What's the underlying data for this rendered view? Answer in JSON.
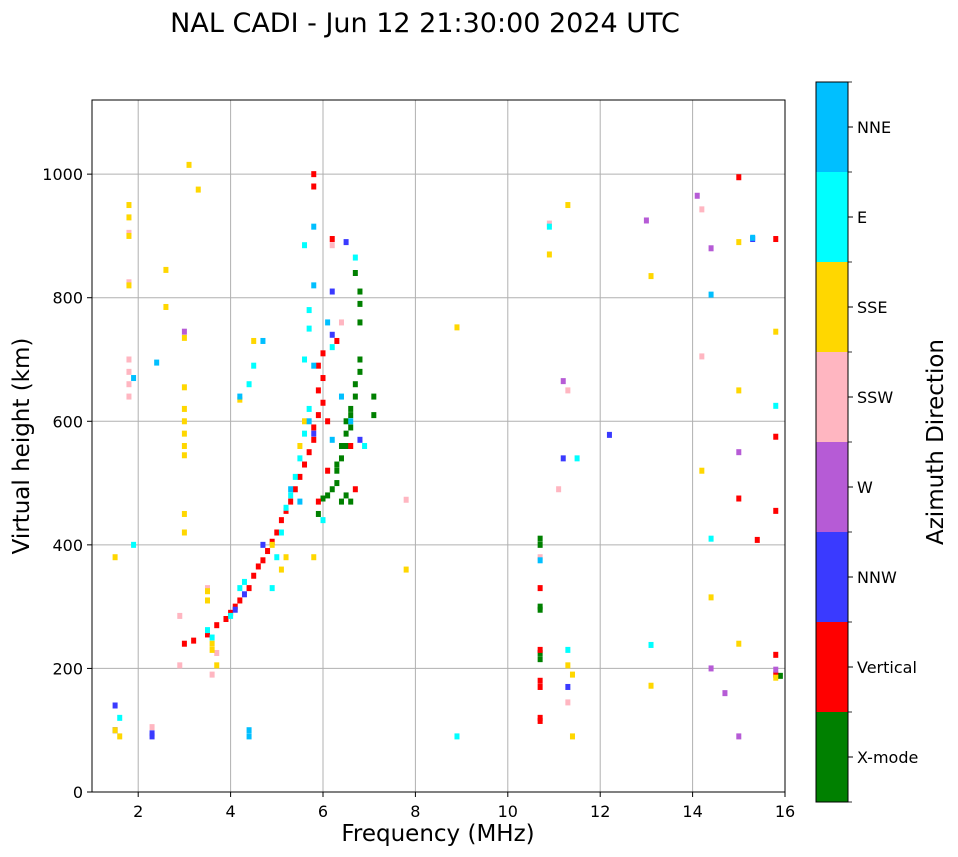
{
  "chart_data": {
    "type": "scatter",
    "title": "NAL CADI - Jun 12 21:30:00 2024 UTC",
    "xlabel": "Frequency (MHz)",
    "ylabel": "Virtual height (km)",
    "xlim": [
      1,
      16
    ],
    "ylim": [
      0,
      1120
    ],
    "xticks": [
      2,
      4,
      6,
      8,
      10,
      12,
      14,
      16
    ],
    "yticks": [
      0,
      200,
      400,
      600,
      800,
      1000
    ],
    "grid": true,
    "colorbar": {
      "label": "Azimuth Direction",
      "categories": [
        {
          "name": "X-mode",
          "color": "#008000"
        },
        {
          "name": "Vertical",
          "color": "#ff0000"
        },
        {
          "name": "NNW",
          "color": "#3a3aff"
        },
        {
          "name": "W",
          "color": "#b65bd6"
        },
        {
          "name": "SSW",
          "color": "#ffb6c1"
        },
        {
          "name": "SSE",
          "color": "#ffd700"
        },
        {
          "name": "E",
          "color": "#00ffff"
        },
        {
          "name": "NNE",
          "color": "#00bfff"
        }
      ]
    },
    "series": [
      {
        "name": "X-mode",
        "points": [
          [
            5.9,
            450
          ],
          [
            6.0,
            475
          ],
          [
            6.1,
            480
          ],
          [
            6.2,
            490
          ],
          [
            6.3,
            500
          ],
          [
            6.3,
            520
          ],
          [
            6.4,
            540
          ],
          [
            6.4,
            560
          ],
          [
            6.5,
            580
          ],
          [
            6.5,
            600
          ],
          [
            6.6,
            610
          ],
          [
            6.6,
            620
          ],
          [
            6.7,
            640
          ],
          [
            6.7,
            660
          ],
          [
            6.8,
            680
          ],
          [
            6.8,
            700
          ],
          [
            6.8,
            760
          ],
          [
            6.8,
            790
          ],
          [
            6.8,
            810
          ],
          [
            6.7,
            840
          ],
          [
            6.3,
            530
          ],
          [
            6.4,
            470
          ],
          [
            6.5,
            480
          ],
          [
            6.6,
            470
          ],
          [
            6.5,
            560
          ],
          [
            6.6,
            590
          ],
          [
            7.1,
            610
          ],
          [
            7.1,
            640
          ],
          [
            10.7,
            400
          ],
          [
            10.7,
            410
          ],
          [
            10.7,
            300
          ],
          [
            10.7,
            295
          ],
          [
            10.7,
            225
          ],
          [
            10.7,
            215
          ],
          [
            15.9,
            188
          ]
        ]
      },
      {
        "name": "Vertical",
        "points": [
          [
            3.0,
            240
          ],
          [
            3.2,
            245
          ],
          [
            3.5,
            255
          ],
          [
            3.7,
            270
          ],
          [
            3.9,
            280
          ],
          [
            4.0,
            290
          ],
          [
            4.1,
            300
          ],
          [
            4.2,
            310
          ],
          [
            4.4,
            330
          ],
          [
            4.5,
            350
          ],
          [
            4.6,
            365
          ],
          [
            4.7,
            375
          ],
          [
            4.8,
            390
          ],
          [
            4.9,
            405
          ],
          [
            5.0,
            420
          ],
          [
            5.1,
            440
          ],
          [
            5.2,
            455
          ],
          [
            5.3,
            470
          ],
          [
            5.4,
            490
          ],
          [
            5.5,
            510
          ],
          [
            5.6,
            530
          ],
          [
            5.7,
            550
          ],
          [
            5.8,
            570
          ],
          [
            5.8,
            590
          ],
          [
            5.9,
            610
          ],
          [
            6.0,
            630
          ],
          [
            5.9,
            650
          ],
          [
            6.0,
            670
          ],
          [
            5.9,
            690
          ],
          [
            6.0,
            710
          ],
          [
            6.1,
            600
          ],
          [
            5.9,
            470
          ],
          [
            6.1,
            520
          ],
          [
            5.8,
            1000
          ],
          [
            5.8,
            980
          ],
          [
            6.2,
            895
          ],
          [
            6.3,
            730
          ],
          [
            6.7,
            490
          ],
          [
            6.6,
            560
          ],
          [
            10.7,
            330
          ],
          [
            10.7,
            230
          ],
          [
            10.7,
            180
          ],
          [
            10.7,
            170
          ],
          [
            10.7,
            120
          ],
          [
            10.7,
            115
          ],
          [
            15.0,
            995
          ],
          [
            15.0,
            475
          ],
          [
            15.4,
            408
          ],
          [
            15.8,
            895
          ],
          [
            15.8,
            575
          ],
          [
            15.8,
            455
          ],
          [
            15.8,
            222
          ],
          [
            15.8,
            190
          ]
        ]
      },
      {
        "name": "NNW",
        "points": [
          [
            1.5,
            140
          ],
          [
            1.5,
            100
          ],
          [
            2.3,
            95
          ],
          [
            2.3,
            90
          ],
          [
            4.1,
            295
          ],
          [
            4.3,
            320
          ],
          [
            4.7,
            400
          ],
          [
            5.8,
            580
          ],
          [
            6.2,
            740
          ],
          [
            6.2,
            810
          ],
          [
            6.5,
            890
          ],
          [
            6.8,
            570
          ],
          [
            11.2,
            540
          ],
          [
            11.3,
            170
          ],
          [
            12.2,
            578
          ],
          [
            15.3,
            895
          ]
        ]
      },
      {
        "name": "W",
        "points": [
          [
            3.0,
            745
          ],
          [
            11.2,
            665
          ],
          [
            13.0,
            925
          ],
          [
            14.1,
            965
          ],
          [
            14.4,
            880
          ],
          [
            14.4,
            200
          ],
          [
            14.7,
            160
          ],
          [
            15.0,
            550
          ],
          [
            15.0,
            90
          ],
          [
            15.8,
            198
          ]
        ]
      },
      {
        "name": "SSW",
        "points": [
          [
            1.8,
            700
          ],
          [
            1.8,
            680
          ],
          [
            1.8,
            660
          ],
          [
            1.8,
            640
          ],
          [
            1.8,
            825
          ],
          [
            1.8,
            905
          ],
          [
            2.3,
            105
          ],
          [
            2.9,
            205
          ],
          [
            2.9,
            285
          ],
          [
            3.5,
            330
          ],
          [
            3.6,
            190
          ],
          [
            3.7,
            225
          ],
          [
            6.2,
            885
          ],
          [
            6.4,
            760
          ],
          [
            7.8,
            473
          ],
          [
            10.7,
            380
          ],
          [
            10.9,
            920
          ],
          [
            11.1,
            490
          ],
          [
            11.3,
            650
          ],
          [
            11.3,
            145
          ],
          [
            14.2,
            943
          ],
          [
            14.2,
            705
          ]
        ]
      },
      {
        "name": "SSE",
        "points": [
          [
            1.5,
            380
          ],
          [
            1.5,
            100
          ],
          [
            1.6,
            90
          ],
          [
            1.8,
            950
          ],
          [
            1.8,
            930
          ],
          [
            1.8,
            900
          ],
          [
            1.8,
            820
          ],
          [
            2.6,
            845
          ],
          [
            2.6,
            785
          ],
          [
            3.0,
            655
          ],
          [
            3.0,
            620
          ],
          [
            3.0,
            600
          ],
          [
            3.0,
            580
          ],
          [
            3.0,
            560
          ],
          [
            3.0,
            545
          ],
          [
            3.0,
            450
          ],
          [
            3.0,
            420
          ],
          [
            3.0,
            735
          ],
          [
            3.1,
            1015
          ],
          [
            3.3,
            975
          ],
          [
            3.5,
            325
          ],
          [
            3.5,
            310
          ],
          [
            3.6,
            240
          ],
          [
            3.6,
            230
          ],
          [
            3.7,
            205
          ],
          [
            4.2,
            635
          ],
          [
            4.5,
            730
          ],
          [
            4.9,
            400
          ],
          [
            5.1,
            360
          ],
          [
            5.2,
            380
          ],
          [
            5.5,
            560
          ],
          [
            5.6,
            600
          ],
          [
            5.8,
            380
          ],
          [
            7.8,
            360
          ],
          [
            8.9,
            752
          ],
          [
            10.9,
            870
          ],
          [
            11.3,
            950
          ],
          [
            11.3,
            205
          ],
          [
            11.4,
            90
          ],
          [
            11.4,
            190
          ],
          [
            13.1,
            835
          ],
          [
            13.1,
            172
          ],
          [
            14.2,
            520
          ],
          [
            14.4,
            315
          ],
          [
            15.0,
            890
          ],
          [
            15.0,
            650
          ],
          [
            15.0,
            240
          ],
          [
            15.8,
            745
          ],
          [
            15.8,
            185
          ]
        ]
      },
      {
        "name": "E",
        "points": [
          [
            1.6,
            120
          ],
          [
            1.9,
            400
          ],
          [
            3.5,
            262
          ],
          [
            3.6,
            250
          ],
          [
            4.0,
            285
          ],
          [
            4.2,
            330
          ],
          [
            4.3,
            340
          ],
          [
            4.4,
            660
          ],
          [
            4.5,
            690
          ],
          [
            4.9,
            330
          ],
          [
            5.0,
            380
          ],
          [
            5.1,
            420
          ],
          [
            5.2,
            460
          ],
          [
            5.3,
            480
          ],
          [
            5.4,
            510
          ],
          [
            5.5,
            540
          ],
          [
            5.6,
            580
          ],
          [
            5.7,
            620
          ],
          [
            5.6,
            700
          ],
          [
            5.7,
            750
          ],
          [
            5.7,
            780
          ],
          [
            5.6,
            885
          ],
          [
            6.2,
            720
          ],
          [
            6.0,
            440
          ],
          [
            6.7,
            865
          ],
          [
            6.9,
            560
          ],
          [
            10.9,
            915
          ],
          [
            11.3,
            230
          ],
          [
            11.5,
            540
          ],
          [
            8.9,
            90
          ],
          [
            13.1,
            238
          ],
          [
            14.4,
            410
          ],
          [
            15.8,
            625
          ]
        ]
      },
      {
        "name": "NNE",
        "points": [
          [
            1.9,
            670
          ],
          [
            2.4,
            695
          ],
          [
            4.2,
            640
          ],
          [
            4.4,
            100
          ],
          [
            4.4,
            90
          ],
          [
            4.7,
            730
          ],
          [
            5.3,
            490
          ],
          [
            5.5,
            470
          ],
          [
            5.7,
            600
          ],
          [
            5.8,
            690
          ],
          [
            5.8,
            820
          ],
          [
            5.8,
            915
          ],
          [
            6.1,
            760
          ],
          [
            6.2,
            570
          ],
          [
            6.4,
            640
          ],
          [
            6.6,
            600
          ],
          [
            10.7,
            375
          ],
          [
            14.4,
            805
          ],
          [
            15.3,
            897
          ]
        ]
      }
    ]
  }
}
